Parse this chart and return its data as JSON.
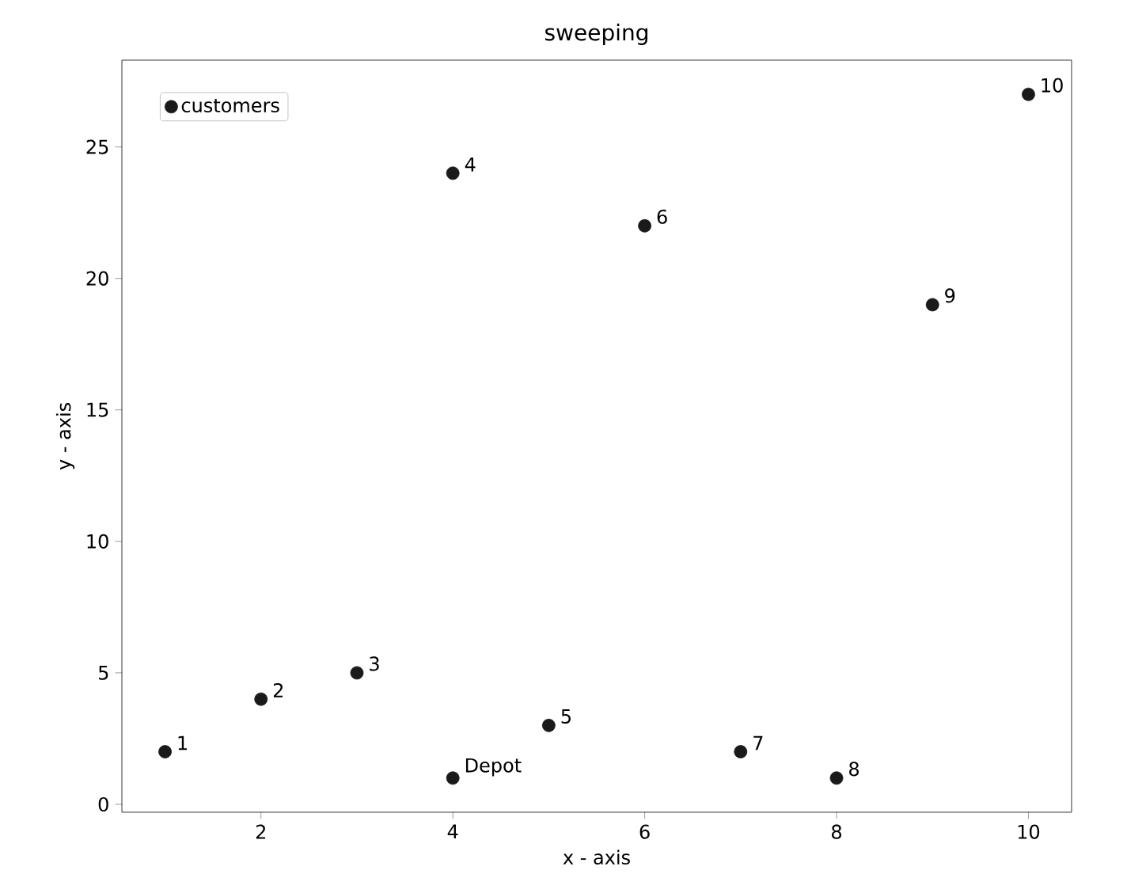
{
  "chart_data": {
    "type": "scatter",
    "title": "sweeping",
    "xlabel": "x - axis",
    "ylabel": "y - axis",
    "x": [
      4,
      1,
      2,
      3,
      4,
      5,
      6,
      7,
      8,
      9,
      10
    ],
    "series": [
      {
        "name": "customers",
        "color": "#1a1a1a",
        "values": [
          1,
          2,
          4,
          5,
          24,
          3,
          22,
          2,
          1,
          19,
          27
        ]
      }
    ],
    "marker": "circle",
    "legend": "top left",
    "xlim": [
      0.55,
      10.45
    ],
    "ylim": [
      -0.3,
      28.3
    ],
    "xticks": [
      2,
      4,
      6,
      8,
      10
    ],
    "yticks": [
      0,
      5,
      10,
      15,
      20,
      25
    ],
    "annotations": [
      {
        "text": "Depot",
        "x": 4,
        "y": 1
      },
      {
        "text": "1",
        "x": 1,
        "y": 2
      },
      {
        "text": "2",
        "x": 2,
        "y": 4
      },
      {
        "text": "3",
        "x": 3,
        "y": 5
      },
      {
        "text": "4",
        "x": 4,
        "y": 24
      },
      {
        "text": "5",
        "x": 5,
        "y": 3
      },
      {
        "text": "6",
        "x": 6,
        "y": 22
      },
      {
        "text": "7",
        "x": 7,
        "y": 2
      },
      {
        "text": "8",
        "x": 8,
        "y": 1
      },
      {
        "text": "9",
        "x": 9,
        "y": 19
      },
      {
        "text": "10",
        "x": 10,
        "y": 27
      }
    ]
  }
}
